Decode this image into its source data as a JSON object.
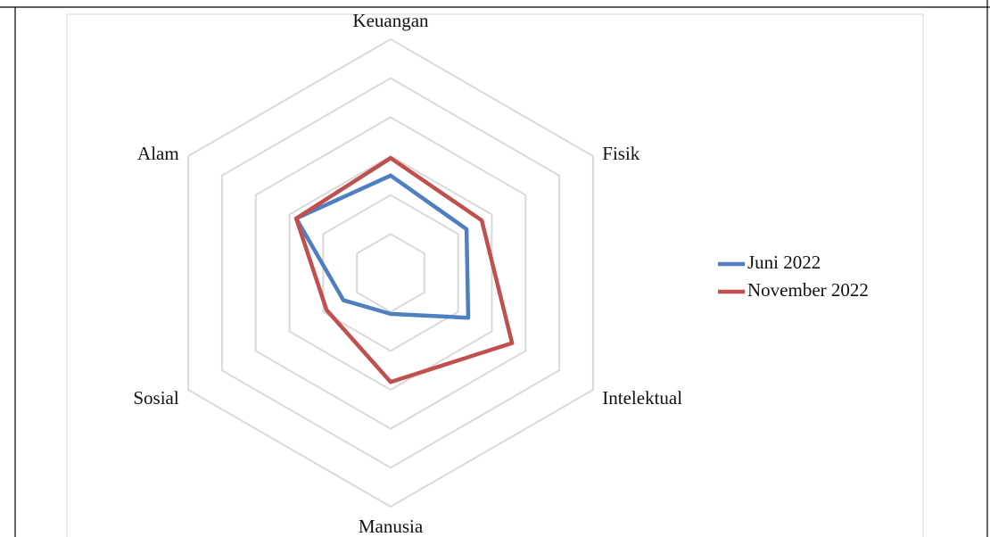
{
  "chart_data": {
    "type": "radar",
    "categories": [
      "Keuangan",
      "Fisik",
      "Intelektual",
      "Manusia",
      "Sosial",
      "Alam"
    ],
    "series": [
      {
        "name": "Juni 2022",
        "color": "#4f7fc1",
        "values": [
          2.5,
          2.25,
          2.3,
          1.05,
          1.4,
          2.8
        ]
      },
      {
        "name": "November 2022",
        "color": "#c0504d",
        "values": [
          2.95,
          2.7,
          3.6,
          2.8,
          1.9,
          2.8
        ]
      }
    ],
    "ylim": [
      0,
      6
    ],
    "yticks": [
      1,
      2,
      3,
      4,
      5,
      6
    ],
    "grid": true,
    "legend": "right"
  }
}
